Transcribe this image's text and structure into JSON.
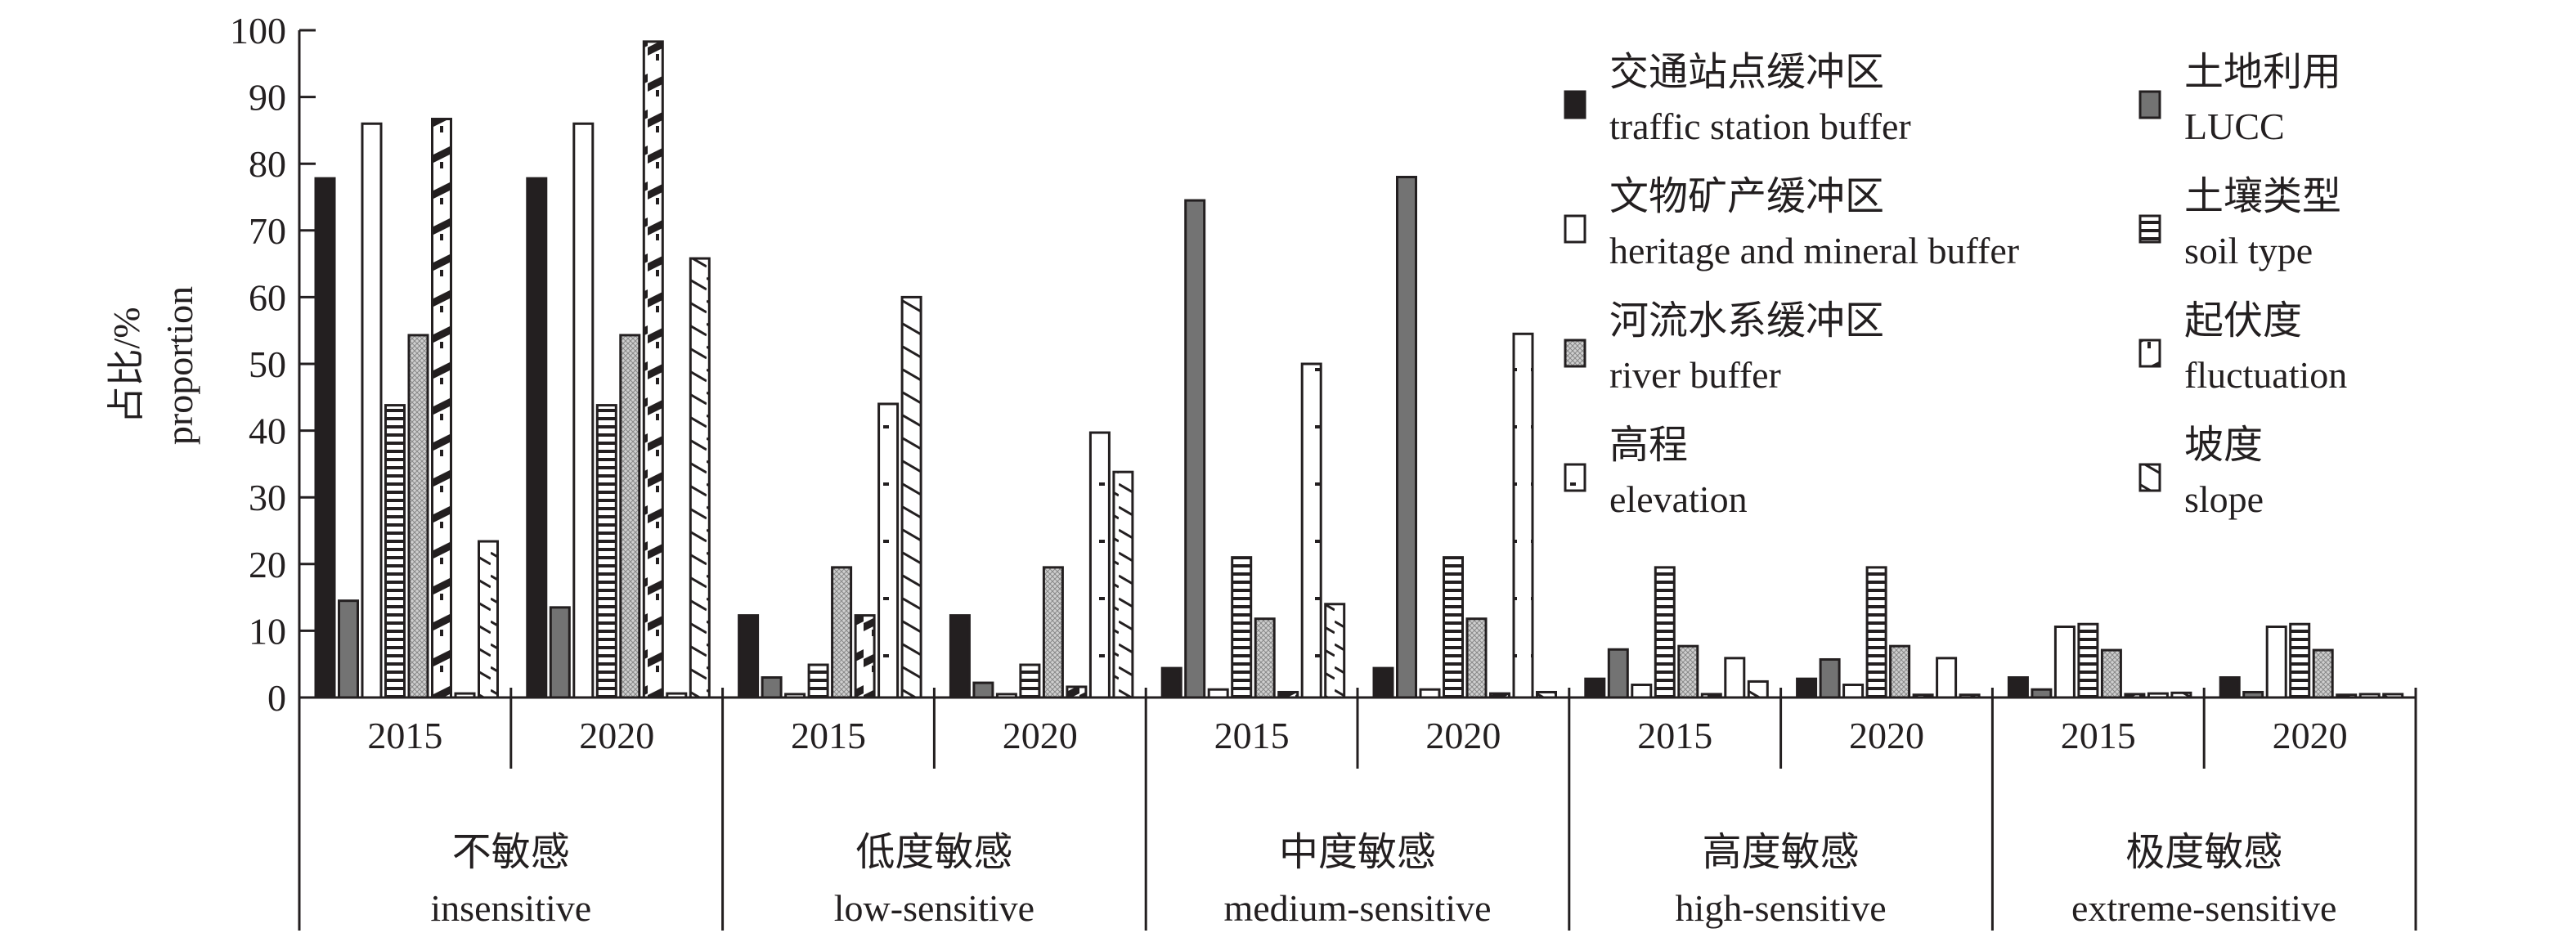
{
  "chart_data": {
    "type": "bar",
    "title": "",
    "ylabel": [
      "占比/%",
      "proportion"
    ],
    "ylim": [
      0,
      100
    ],
    "yticks": [
      0,
      10,
      20,
      30,
      40,
      50,
      60,
      70,
      80,
      90,
      100
    ],
    "grid": false,
    "legend_placement": "top-right",
    "groups": [
      {
        "cn": "不敏感",
        "en": "insensitive"
      },
      {
        "cn": "低度敏感",
        "en": "low-sensitive"
      },
      {
        "cn": "中度敏感",
        "en": "medium-sensitive"
      },
      {
        "cn": "高度敏感",
        "en": "high-sensitive"
      },
      {
        "cn": "极度敏感",
        "en": "extreme-sensitive"
      }
    ],
    "years": [
      "2015",
      "2020"
    ],
    "series": [
      {
        "cn": "交通站点缓冲区",
        "en": "traffic station buffer",
        "pattern": "solid-black",
        "values": [
          [
            77.8,
            77.8
          ],
          [
            12.3,
            12.3
          ],
          [
            4.4,
            4.4
          ],
          [
            2.8,
            2.8
          ],
          [
            3.0,
            3.0
          ]
        ]
      },
      {
        "cn": "土地利用",
        "en": "LUCC",
        "pattern": "solid-gray",
        "values": [
          [
            14.5,
            13.5
          ],
          [
            3.0,
            2.2
          ],
          [
            74.5,
            78.0
          ],
          [
            7.2,
            5.7
          ],
          [
            1.2,
            0.8
          ]
        ]
      },
      {
        "cn": "文物矿产缓冲区",
        "en": "heritage and mineral buffer",
        "pattern": "white",
        "values": [
          [
            86.0,
            86.0
          ],
          [
            0.5,
            0.5
          ],
          [
            1.2,
            1.2
          ],
          [
            1.9,
            1.9
          ],
          [
            10.6,
            10.6
          ]
        ]
      },
      {
        "cn": "土壤类型",
        "en": "soil type",
        "pattern": "horizontal",
        "values": [
          [
            43.8,
            43.8
          ],
          [
            4.9,
            4.9
          ],
          [
            21.0,
            21.0
          ],
          [
            19.5,
            19.5
          ],
          [
            11.0,
            11.0
          ]
        ]
      },
      {
        "cn": "河流水系缓冲区",
        "en": "river buffer",
        "pattern": "dots",
        "values": [
          [
            54.3,
            54.3
          ],
          [
            19.5,
            19.5
          ],
          [
            11.8,
            11.8
          ],
          [
            7.7,
            7.7
          ],
          [
            7.1,
            7.1
          ]
        ]
      },
      {
        "cn": "起伏度",
        "en": "fluctuation",
        "pattern": "steps",
        "values": [
          [
            86.7,
            98.3
          ],
          [
            12.3,
            1.6
          ],
          [
            0.8,
            0.6
          ],
          [
            0.5,
            0.4
          ],
          [
            0.5,
            0.4
          ]
        ]
      },
      {
        "cn": "高程",
        "en": "elevation",
        "pattern": "ticks",
        "values": [
          [
            0.6,
            0.6
          ],
          [
            44.0,
            39.7
          ],
          [
            50.0,
            54.5
          ],
          [
            5.9,
            5.9
          ],
          [
            0.6,
            0.5
          ]
        ]
      },
      {
        "cn": "坡度",
        "en": "slope",
        "pattern": "zigzag",
        "values": [
          [
            23.4,
            65.8
          ],
          [
            60.0,
            33.8
          ],
          [
            14.0,
            0.8
          ],
          [
            2.4,
            0.4
          ],
          [
            0.7,
            0.5
          ]
        ]
      }
    ]
  }
}
